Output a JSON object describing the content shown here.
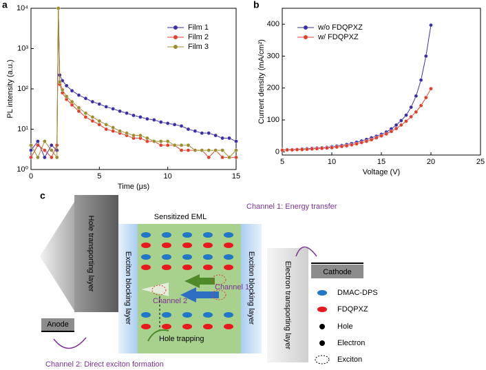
{
  "chart_data": [
    {
      "type": "line",
      "panel_label": "a",
      "xlabel": "Time (μs)",
      "ylabel": "PL intensity (a.u.)",
      "log_y": true,
      "legend": "top-right",
      "x": [
        0,
        0.5,
        1,
        1.5,
        1.9,
        2,
        2.1,
        2.3,
        2.6,
        3,
        3.5,
        4,
        4.5,
        5,
        5.5,
        6,
        6.5,
        7,
        7.5,
        8,
        8.5,
        9,
        9.5,
        10,
        10.5,
        11,
        11.5,
        12,
        12.5,
        13,
        13.5,
        14,
        14.5,
        15
      ],
      "series": [
        {
          "name": "Film 1",
          "color": "#3a2fa6",
          "values": [
            3,
            5,
            2,
            4,
            3,
            10000,
            220,
            160,
            120,
            90,
            70,
            58,
            48,
            42,
            36,
            32,
            28,
            25,
            22,
            20,
            18,
            17,
            15,
            14,
            13,
            12,
            10,
            9,
            8,
            8,
            7,
            6,
            6,
            5
          ]
        },
        {
          "name": "Film 2",
          "color": "#e0402c",
          "values": [
            2,
            4,
            3,
            2,
            4,
            10000,
            130,
            80,
            55,
            40,
            28,
            20,
            16,
            13,
            10,
            9,
            8,
            7,
            6,
            6,
            5,
            5,
            4,
            4,
            4,
            3,
            3,
            3,
            3,
            2,
            3,
            2,
            2,
            2
          ]
        },
        {
          "name": "Film 3",
          "color": "#9c8c2c",
          "values": [
            4,
            2,
            5,
            3,
            2,
            10000,
            150,
            95,
            65,
            48,
            34,
            25,
            20,
            16,
            13,
            11,
            9,
            8,
            7,
            7,
            6,
            5,
            5,
            5,
            4,
            4,
            4,
            3,
            3,
            3,
            3,
            3,
            2,
            3
          ]
        }
      ],
      "xlim": [
        0,
        15
      ],
      "xticks": [
        0,
        5,
        10,
        15
      ],
      "ylim": [
        1,
        10000
      ],
      "yticks": [
        {
          "value": 1,
          "label": "10⁰"
        },
        {
          "value": 10,
          "label": "10¹"
        },
        {
          "value": 100,
          "label": "10²"
        },
        {
          "value": 1000,
          "label": "10³"
        },
        {
          "value": 10000,
          "label": "10⁴"
        }
      ]
    },
    {
      "type": "line",
      "panel_label": "b",
      "xlabel": "Voltage (V)",
      "ylabel": "Current density (mA/cm²)",
      "log_y": false,
      "legend": "top-left",
      "x": [
        5,
        5.5,
        6,
        6.5,
        7,
        7.5,
        8,
        8.5,
        9,
        9.5,
        10,
        10.5,
        11,
        11.5,
        12,
        12.5,
        13,
        13.5,
        14,
        14.5,
        15,
        15.5,
        16,
        16.5,
        17,
        17.5,
        18,
        18.5,
        19,
        19.5,
        20
      ],
      "series": [
        {
          "name": "w/o FDQPXZ",
          "color": "#3a2fa6",
          "values": [
            6,
            7,
            7,
            8,
            9,
            10,
            11,
            12,
            13,
            14,
            16,
            18,
            20,
            23,
            26,
            30,
            34,
            39,
            44,
            49,
            55,
            62,
            72,
            84,
            98,
            115,
            140,
            175,
            225,
            300,
            397
          ]
        },
        {
          "name": "w/ FDQPXZ",
          "color": "#e0402c",
          "values": [
            5,
            6,
            6,
            7,
            7,
            8,
            9,
            10,
            11,
            12,
            13,
            15,
            17,
            19,
            22,
            25,
            29,
            33,
            38,
            44,
            50,
            56,
            64,
            73,
            84,
            96,
            110,
            125,
            145,
            170,
            198
          ]
        }
      ],
      "xlim": [
        5,
        25
      ],
      "xticks": [
        5,
        10,
        15,
        20,
        25
      ],
      "ylim": [
        -10,
        450
      ],
      "yticks": [
        0,
        100,
        200,
        300,
        400
      ]
    }
  ],
  "diagram": {
    "panel_label": "c",
    "top_note": "Channel 1: Energy transfer",
    "bottom_note": "Channel 2: Direct exciton formation",
    "eml": "Sensitized EML",
    "htl": "Hole transporting layer",
    "ebl_left": "Exciton blocking layer",
    "ebl_right": "Exciton blocking layer",
    "etl": "Electron transporting layer",
    "anode": "Anode",
    "cathode": "Cathode",
    "channel1": "Channel 1",
    "channel2": "Channel 2",
    "hole_trapping": "Hole trapping",
    "legend": [
      "DMAC-DPS",
      "FDQPXZ",
      "Hole",
      "Electron",
      "Exciton"
    ]
  }
}
